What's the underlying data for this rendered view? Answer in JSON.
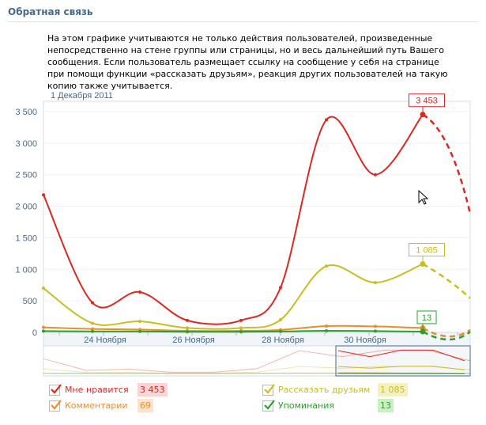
{
  "section": {
    "title": "Обратная связь",
    "description": "На этом графике учитываются не только действия пользователей, произведенные непосредственно на стене группы или страницы, но и весь дальнейший путь Вашего сообщения. Если пользователь размещает ссылку на сообщение у себя на странице при помощи функции «рассказать друзьям», реакция других пользователей на такую копию также учитывается."
  },
  "chart_data": {
    "type": "line",
    "date_label": "1 Декабря 2011",
    "yticks": [
      "3 500",
      "3 000",
      "2 500",
      "2 000",
      "1 500",
      "1 000",
      "500",
      "0"
    ],
    "ylim": [
      0,
      3500
    ],
    "xticks": [
      "24 Ноября",
      "26 Ноября",
      "28 Ноября",
      "30 Ноября"
    ],
    "x": [
      0,
      1,
      2,
      3,
      4,
      5,
      6,
      7,
      8,
      9,
      10
    ],
    "series": [
      {
        "name": "Мне нравится",
        "color": "#e0271f",
        "values": [
          2180,
          470,
          640,
          190,
          190,
          710,
          3370,
          2500,
          3453,
          3453,
          1880
        ],
        "label": "3 453"
      },
      {
        "name": "Рассказать друзьям",
        "color": "#c8be1e",
        "values": [
          700,
          145,
          175,
          70,
          70,
          200,
          1050,
          790,
          1085,
          1085,
          540
        ],
        "label": "1 085"
      },
      {
        "name": "Комментарии",
        "color": "#f08c28",
        "values": [
          80,
          55,
          45,
          25,
          25,
          40,
          100,
          95,
          69,
          69,
          40
        ],
        "label": ""
      },
      {
        "name": "Упоминания",
        "color": "#2ca02c",
        "values": [
          20,
          15,
          15,
          10,
          10,
          15,
          25,
          20,
          13,
          13,
          10
        ],
        "label": "13"
      }
    ]
  },
  "legend": [
    {
      "label": "Мне нравится",
      "value": "3 453",
      "color": "#e0271f",
      "bg": "#fad5d5"
    },
    {
      "label": "Комментарии",
      "value": "69",
      "color": "#f08c28",
      "bg": "#fde3cb"
    },
    {
      "label": "Рассказать друзьям",
      "value": "1 085",
      "color": "#c8be1e",
      "bg": "#f3f0c3"
    },
    {
      "label": "Упоминания",
      "value": "13",
      "color": "#2ca02c",
      "bg": "#c9efc2"
    }
  ]
}
